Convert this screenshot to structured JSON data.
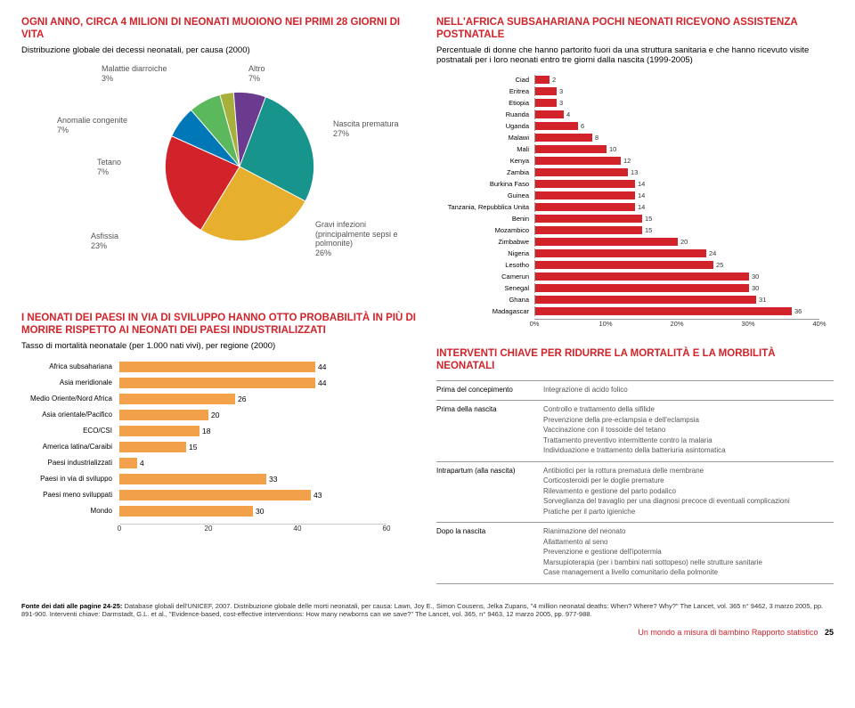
{
  "left": {
    "title1": "OGNI ANNO, CIRCA 4 MILIONI DI NEONATI MUOIONO NEI PRIMI 28 GIORNI DI VITA",
    "subtitle1": "Distribuzione globale dei decessi neonatali, per causa (2000)",
    "pie": {
      "labels": {
        "diarroiche": "Malattie diarroiche",
        "diarroiche_pct": "3%",
        "altro": "Altro",
        "altro_pct": "7%",
        "congenite": "Anomalie congenite",
        "congenite_pct": "7%",
        "tetano": "Tetano",
        "tetano_pct": "7%",
        "asfissia": "Asfissia",
        "asfissia_pct": "23%",
        "prematura": "Nascita prematura",
        "prematura_pct": "27%",
        "infezioni": "Gravi infezioni (principalmente sepsi e polmonite)",
        "infezioni_pct": "26%"
      },
      "slices": [
        {
          "value": 3,
          "color": "#a7b03a"
        },
        {
          "value": 7,
          "color": "#6b3b8f"
        },
        {
          "value": 27,
          "color": "#17958d"
        },
        {
          "value": 26,
          "color": "#e6af2e"
        },
        {
          "value": 23,
          "color": "#d2232a"
        },
        {
          "value": 7,
          "color": "#0077b6"
        },
        {
          "value": 7,
          "color": "#5cb85c"
        }
      ]
    },
    "title2a": "I NEONATI DEI PAESI IN VIA DI SVILUPPO HANNO OTTO PROBABILITÀ IN PIÙ DI MORIRE RISPETTO AI NEONATI DEI PAESI INDUSTRIALIZZATI",
    "subtitle2": "Tasso di mortalità neonatale (per 1.000 nati vivi), per regione (2000)",
    "bars": {
      "max": 60,
      "color": "#f3a04b",
      "ticks": [
        0,
        20,
        40,
        60
      ],
      "items": [
        {
          "label": "Africa subsahariana",
          "value": 44
        },
        {
          "label": "Asia meridionale",
          "value": 44
        },
        {
          "label": "Medio Oriente/Nord Africa",
          "value": 26
        },
        {
          "label": "Asia orientale/Pacifico",
          "value": 20
        },
        {
          "label": "ECO/CSI",
          "value": 18
        },
        {
          "label": "America latina/Caraibi",
          "value": 15
        },
        {
          "label": "Paesi industrializzati",
          "value": 4
        },
        {
          "label": "Paesi in via di sviluppo",
          "value": 33
        },
        {
          "label": "Paesi meno sviluppati",
          "value": 43
        },
        {
          "label": "Mondo",
          "value": 30
        }
      ]
    }
  },
  "right": {
    "title1": "NELL'AFRICA SUBSAHARIANA POCHI NEONATI RICEVONO ASSISTENZA POSTNATALE",
    "subtitle1": "Percentuale di donne che hanno partorito fuori da una struttura sanitaria e che hanno ricevuto visite postnatali per i loro neonati entro tre giorni dalla nascita (1999-2005)",
    "hbars": {
      "max": 40,
      "color": "#d2232a",
      "ticks": [
        0,
        10,
        20,
        30,
        40
      ],
      "tick_labels": [
        "0%",
        "10%",
        "20%",
        "30%",
        "40%"
      ],
      "items": [
        {
          "label": "Ciad",
          "value": 2
        },
        {
          "label": "Eritrea",
          "value": 3
        },
        {
          "label": "Etiopia",
          "value": 3
        },
        {
          "label": "Ruanda",
          "value": 4
        },
        {
          "label": "Uganda",
          "value": 6
        },
        {
          "label": "Malawi",
          "value": 8
        },
        {
          "label": "Mali",
          "value": 10
        },
        {
          "label": "Kenya",
          "value": 12
        },
        {
          "label": "Zambia",
          "value": 13
        },
        {
          "label": "Burkina Faso",
          "value": 14
        },
        {
          "label": "Guinea",
          "value": 14
        },
        {
          "label": "Tanzania, Repubblica Unita",
          "value": 14
        },
        {
          "label": "Benin",
          "value": 15
        },
        {
          "label": "Mozambico",
          "value": 15
        },
        {
          "label": "Zimbabwe",
          "value": 20
        },
        {
          "label": "Nigeria",
          "value": 24
        },
        {
          "label": "Lesotho",
          "value": 25
        },
        {
          "label": "Camerun",
          "value": 30
        },
        {
          "label": "Senegal",
          "value": 30
        },
        {
          "label": "Ghana",
          "value": 31
        },
        {
          "label": "Madagascar",
          "value": 36
        }
      ]
    },
    "title2": "INTERVENTI CHIAVE PER RIDURRE LA MORTALITÀ E LA MORBILITÀ NEONATALI",
    "table": [
      {
        "l": "Prima del concepimento",
        "r": [
          "Integrazione di acido folico"
        ]
      },
      {
        "l": "Prima della nascita",
        "r": [
          "Controllo e trattamento della sifilide",
          "Prevenzione della pre-eclampsia e dell'eclampsia",
          "Vaccinazione con il tossoide del tetano",
          "Trattamento preventivo intermittente contro la malaria",
          "Individuazione e trattamento della batteriuria asintomatica"
        ]
      },
      {
        "l": "Intrapartum (alla nascita)",
        "r": [
          "Antibiotici per la rottura prematura delle membrane",
          "Corticosteroidi per le doglie premature",
          "Rilevamento e gestione del parto podalico",
          "Sorveglianza del travaglio per una diagnosi precoce di eventuali complicazioni",
          "Pratiche per il parto igieniche"
        ]
      },
      {
        "l": "Dopo la nascita",
        "r": [
          "Rianimazione del neonato",
          "Allattamento al seno",
          "Prevenzione e gestione dell'ipotermia",
          "Marsupioterapia (per i bambini nati sottopeso) nelle strutture sanitarie",
          "Case management a livello comunitario della polmonite"
        ]
      }
    ]
  },
  "source": {
    "label": "Fonte dei dati alle pagine 24-25:",
    "text": " Database globali dell'UNICEF, 2007. Distribuzione globale delle morti neonatali, per causa: Lawn, Joy E., Simon Cousens, Jelka Zupans, \"4 million neonatal deaths: When? Where? Why?\" The Lancet, vol. 365 n° 9462, 3 marzo 2005, pp. 891-900. Interventi chiave: Darmstadt, G.L. et al., \"Evidence-based, cost-effective interventions: How many newborns can we save?\" The Lancet, vol. 365, n° 9463, 12 marzo 2005, pp. 977-988."
  },
  "footer": {
    "report": "Un mondo a misura di bambino Rapporto statistico",
    "page": "25"
  }
}
